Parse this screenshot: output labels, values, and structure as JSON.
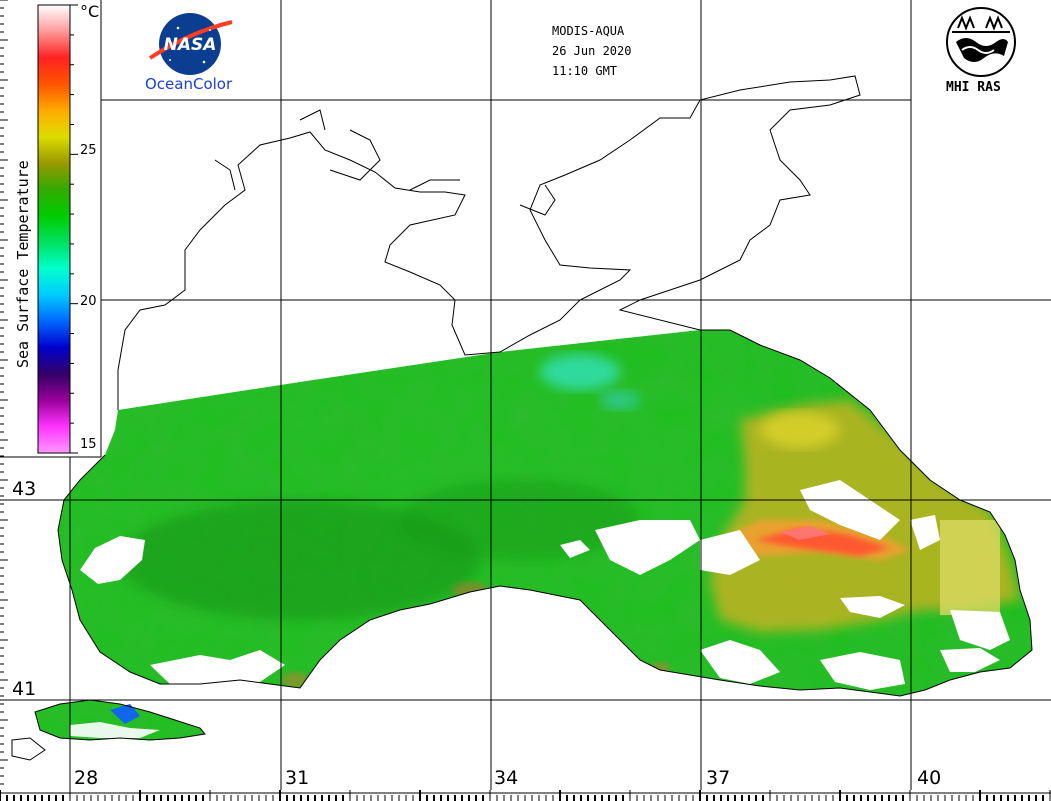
{
  "header": {
    "satellite": "MODIS-AQUA",
    "date": "26 Jun 2020",
    "time": "11:10 GMT"
  },
  "logos": {
    "nasa_wordmark": "NASA",
    "oceancolor_label": "OceanColor",
    "mhi_label": "MHI RAS",
    "nasa_icon": "nasa-meatball-icon",
    "mhi_icon": "mhi-ras-emblem-icon"
  },
  "colorbar": {
    "title": "Sea Surface Temperature",
    "unit": "°C",
    "ticks": [
      "15",
      "20",
      "25"
    ],
    "range": [
      15,
      30
    ],
    "stops": [
      "#ff99ff",
      "#ff33ff",
      "#990099",
      "#330066",
      "#0000cc",
      "#0066ff",
      "#00ccff",
      "#00ffcc",
      "#00e060",
      "#00cc00",
      "#33aa00",
      "#999900",
      "#dddd00",
      "#ffaa00",
      "#ff5500",
      "#ff2222",
      "#ff9999",
      "#ffffff"
    ]
  },
  "grid": {
    "latitudes": [
      "43",
      "41"
    ],
    "longitudes": [
      "28",
      "31",
      "34",
      "37",
      "40"
    ]
  },
  "colors": {
    "sea_base": "#1fbf1f",
    "sea_dark": "#1a9a1a",
    "cyan_patch": "#22ddaa",
    "warm_yellow": "#c8c020",
    "warm_orange": "#f07030",
    "coastline": "#000000",
    "cloud": "#ffffff"
  }
}
